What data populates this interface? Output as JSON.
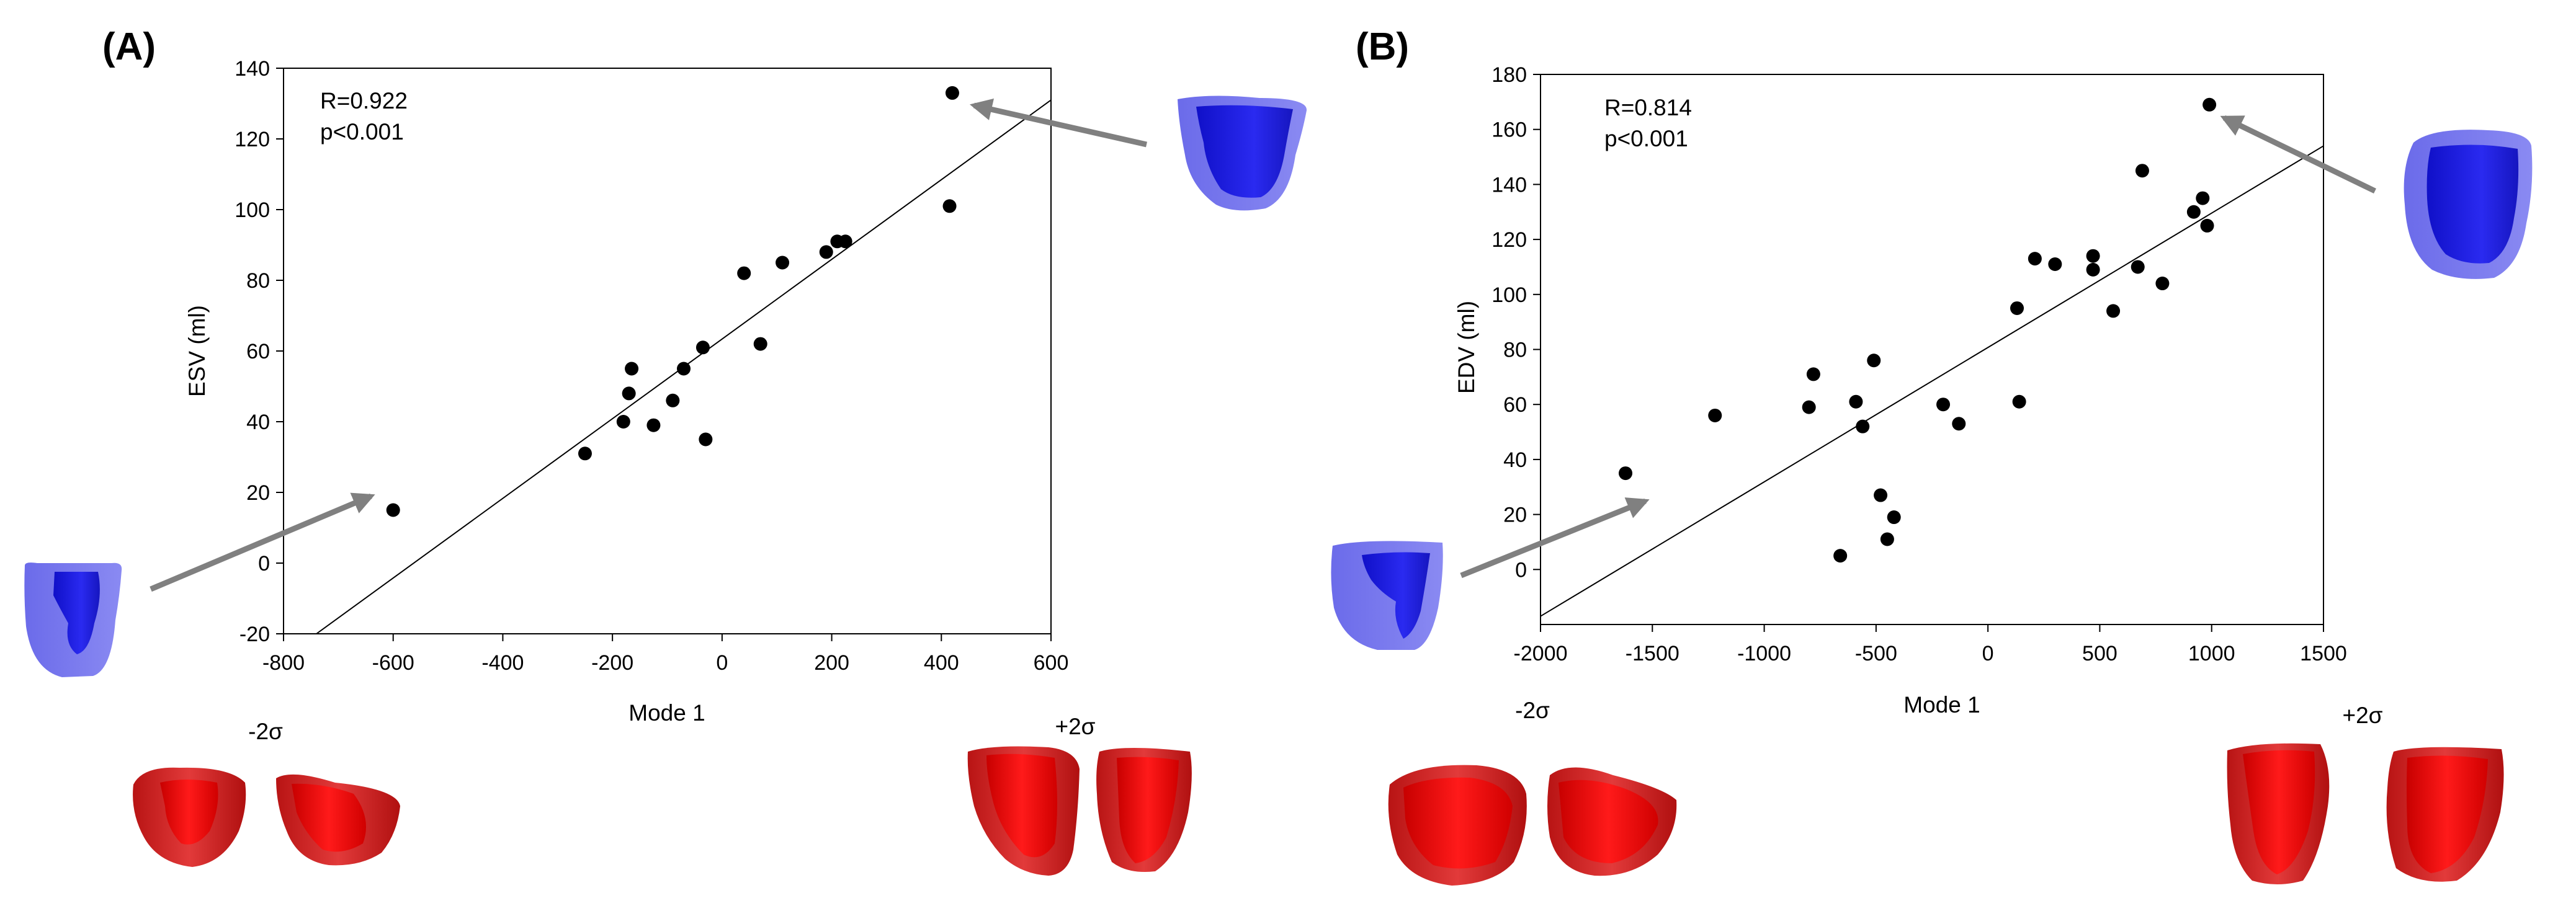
{
  "panel_labels": {
    "a": "(A)",
    "b": "(B)"
  },
  "colors": {
    "axis": "#000000",
    "point": "#000000",
    "arrow": "#808080",
    "mesh_blue": "#2020e6",
    "mesh_red": "#e01010"
  },
  "illustrations": {
    "a_low_label": "-2σ",
    "a_high_label": "+2σ",
    "b_low_label": "-2σ",
    "b_high_label": "+2σ",
    "blue_mesh_icon": "heart-ventricle-blue-mesh",
    "red_mesh_icon": "heart-ventricle-red-mesh"
  },
  "chart_data": [
    {
      "type": "scatter",
      "panel": "A",
      "xlabel": "Mode 1",
      "ylabel": "ESV (ml)",
      "xlim": [
        -800,
        600
      ],
      "ylim": [
        -20,
        140
      ],
      "xticks": [
        "-800",
        "-600",
        "-400",
        "-200",
        "0",
        "200",
        "400",
        "600"
      ],
      "yticks": [
        "-20",
        "0",
        "20",
        "40",
        "60",
        "80",
        "100",
        "120",
        "140"
      ],
      "annotation": [
        "R=0.922",
        "p<0.001"
      ],
      "trendline": [
        [
          -740,
          -20
        ],
        [
          600,
          131
        ]
      ],
      "points": [
        [
          -600,
          15
        ],
        [
          -250,
          31
        ],
        [
          -180,
          40
        ],
        [
          -170,
          48
        ],
        [
          -165,
          55
        ],
        [
          -125,
          39
        ],
        [
          -90,
          46
        ],
        [
          -70,
          55
        ],
        [
          -35,
          61
        ],
        [
          -30,
          35
        ],
        [
          40,
          82
        ],
        [
          70,
          62
        ],
        [
          110,
          85
        ],
        [
          190,
          88
        ],
        [
          210,
          91
        ],
        [
          225,
          91
        ],
        [
          415,
          101
        ],
        [
          420,
          133
        ]
      ]
    },
    {
      "type": "scatter",
      "panel": "B",
      "xlabel": "Mode 1",
      "ylabel": "EDV (ml)",
      "xlim": [
        -2000,
        1500
      ],
      "ylim": [
        -20,
        180
      ],
      "xticks": [
        "-2000",
        "-1500",
        "-1000",
        "-500",
        "0",
        "500",
        "1000",
        "1500"
      ],
      "yticks": [
        "0",
        "20",
        "40",
        "60",
        "80",
        "100",
        "120",
        "140",
        "160",
        "180"
      ],
      "annotation": [
        "R=0.814",
        "p<0.001"
      ],
      "trendline": [
        [
          -2000,
          -17
        ],
        [
          1500,
          154
        ]
      ],
      "points": [
        [
          -1620,
          35
        ],
        [
          -1220,
          56
        ],
        [
          -800,
          59
        ],
        [
          -780,
          71
        ],
        [
          -590,
          61
        ],
        [
          -560,
          52
        ],
        [
          -510,
          76
        ],
        [
          -480,
          27
        ],
        [
          -450,
          11
        ],
        [
          -420,
          19
        ],
        [
          -660,
          5
        ],
        [
          -200,
          60
        ],
        [
          -130,
          53
        ],
        [
          130,
          95
        ],
        [
          140,
          61
        ],
        [
          210,
          113
        ],
        [
          300,
          111
        ],
        [
          470,
          114
        ],
        [
          470,
          109
        ],
        [
          560,
          94
        ],
        [
          670,
          110
        ],
        [
          690,
          145
        ],
        [
          780,
          104
        ],
        [
          920,
          130
        ],
        [
          960,
          135
        ],
        [
          980,
          125
        ],
        [
          990,
          169
        ]
      ]
    }
  ]
}
